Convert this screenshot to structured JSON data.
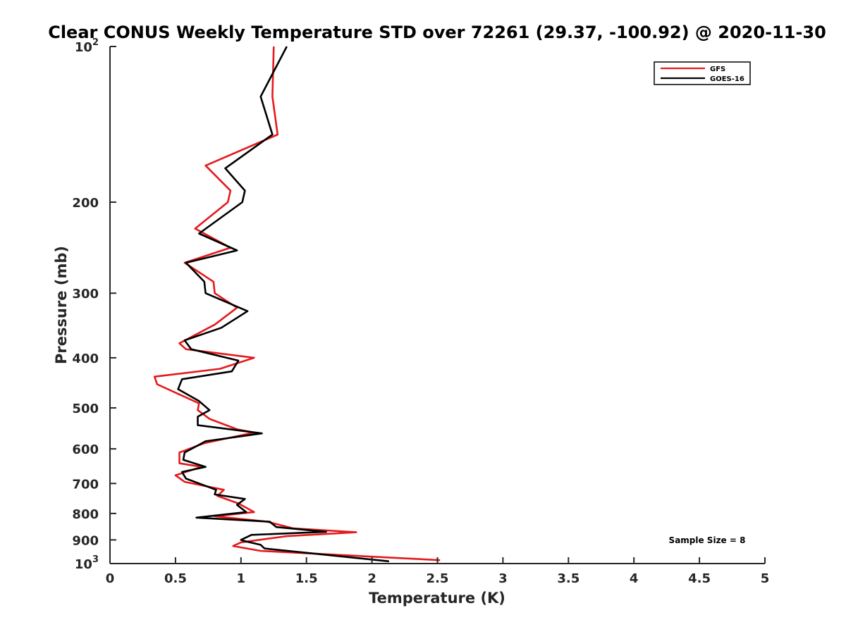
{
  "chart_data": {
    "type": "line",
    "title": "Clear CONUS Weekly Temperature STD over 72261 (29.37, -100.92) @ 2020-11-30",
    "xlabel": "Temperature (K)",
    "ylabel": "Pressure (mb)",
    "xlim": [
      0,
      5
    ],
    "ylim": [
      100,
      1000
    ],
    "y_scale": "log",
    "y_reversed": true,
    "x_ticks": [
      "0",
      "0.5",
      "1",
      "1.5",
      "2",
      "2.5",
      "3",
      "3.5",
      "4",
      "4.5",
      "5"
    ],
    "y_ticks": [
      {
        "value": 100,
        "base": "10",
        "exp": "2"
      },
      {
        "value": 200,
        "label": "200"
      },
      {
        "value": 300,
        "label": "300"
      },
      {
        "value": 400,
        "label": "400"
      },
      {
        "value": 500,
        "label": "500"
      },
      {
        "value": 600,
        "label": "600"
      },
      {
        "value": 700,
        "label": "700"
      },
      {
        "value": 800,
        "label": "800"
      },
      {
        "value": 900,
        "label": "900"
      },
      {
        "value": 1000,
        "base": "10",
        "exp": "3"
      }
    ],
    "legend": {
      "placement": "top-right",
      "entries": [
        "GFS",
        "GOES-16"
      ]
    },
    "annotation": "Sample Size = 8",
    "series": [
      {
        "name": "GFS",
        "color": "#e41a1c",
        "points": [
          [
            1.25,
            100
          ],
          [
            1.24,
            125
          ],
          [
            1.28,
            148
          ],
          [
            0.73,
            170
          ],
          [
            0.92,
            190
          ],
          [
            0.9,
            200
          ],
          [
            0.65,
            225
          ],
          [
            0.92,
            245
          ],
          [
            0.57,
            262
          ],
          [
            0.79,
            285
          ],
          [
            0.8,
            300
          ],
          [
            0.97,
            320
          ],
          [
            0.8,
            345
          ],
          [
            0.53,
            375
          ],
          [
            0.58,
            385
          ],
          [
            1.1,
            400
          ],
          [
            0.84,
            420
          ],
          [
            0.34,
            435
          ],
          [
            0.36,
            450
          ],
          [
            0.68,
            490
          ],
          [
            0.67,
            505
          ],
          [
            0.76,
            525
          ],
          [
            0.97,
            550
          ],
          [
            1.1,
            558
          ],
          [
            0.72,
            585
          ],
          [
            0.53,
            610
          ],
          [
            0.53,
            640
          ],
          [
            0.7,
            650
          ],
          [
            0.5,
            675
          ],
          [
            0.57,
            695
          ],
          [
            0.87,
            720
          ],
          [
            0.82,
            740
          ],
          [
            0.98,
            765
          ],
          [
            1.1,
            795
          ],
          [
            0.8,
            810
          ],
          [
            1.2,
            830
          ],
          [
            1.4,
            855
          ],
          [
            1.88,
            870
          ],
          [
            1.35,
            885
          ],
          [
            1.0,
            910
          ],
          [
            0.94,
            925
          ],
          [
            1.15,
            945
          ],
          [
            2.52,
            985
          ]
        ]
      },
      {
        "name": "GOES-16",
        "color": "#000000",
        "points": [
          [
            1.35,
            100
          ],
          [
            1.15,
            125
          ],
          [
            1.24,
            148
          ],
          [
            0.88,
            172
          ],
          [
            1.03,
            190
          ],
          [
            1.01,
            200
          ],
          [
            0.68,
            230
          ],
          [
            0.97,
            248
          ],
          [
            0.58,
            262
          ],
          [
            0.72,
            285
          ],
          [
            0.73,
            300
          ],
          [
            1.05,
            325
          ],
          [
            0.85,
            350
          ],
          [
            0.57,
            370
          ],
          [
            0.62,
            385
          ],
          [
            0.98,
            405
          ],
          [
            0.93,
            425
          ],
          [
            0.55,
            440
          ],
          [
            0.52,
            460
          ],
          [
            0.68,
            485
          ],
          [
            0.76,
            505
          ],
          [
            0.67,
            520
          ],
          [
            0.67,
            540
          ],
          [
            1.16,
            560
          ],
          [
            0.73,
            580
          ],
          [
            0.57,
            610
          ],
          [
            0.56,
            630
          ],
          [
            0.73,
            650
          ],
          [
            0.55,
            665
          ],
          [
            0.58,
            685
          ],
          [
            0.81,
            720
          ],
          [
            0.8,
            735
          ],
          [
            1.03,
            750
          ],
          [
            0.97,
            770
          ],
          [
            1.04,
            795
          ],
          [
            0.66,
            815
          ],
          [
            1.22,
            830
          ],
          [
            1.27,
            850
          ],
          [
            1.65,
            868
          ],
          [
            1.08,
            880
          ],
          [
            1.0,
            900
          ],
          [
            1.03,
            905
          ],
          [
            1.15,
            920
          ],
          [
            1.18,
            935
          ],
          [
            2.13,
            990
          ]
        ]
      }
    ]
  }
}
